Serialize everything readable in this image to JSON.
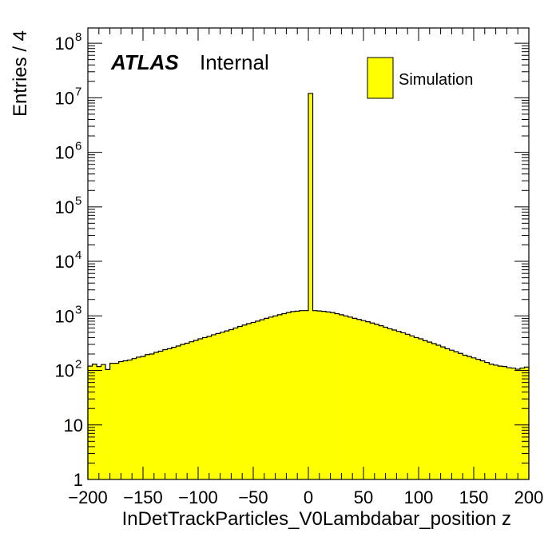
{
  "chart_data": {
    "type": "bar",
    "subtype": "histogram",
    "xlabel": "InDetTrackParticles_V0Lambdabar_position z",
    "ylabel": "Entries / 4",
    "xlim": [
      -200,
      200
    ],
    "ylim": [
      1,
      200000000
    ],
    "yscale": "log",
    "bin_width": 4,
    "x_ticks": [
      "−200",
      "−150",
      "−100",
      "−50",
      "0",
      "50",
      "100",
      "150",
      "200"
    ],
    "x_tick_values": [
      -200,
      -150,
      -100,
      -50,
      0,
      50,
      100,
      150,
      200
    ],
    "y_ticks": [
      {
        "value": 1,
        "base": "1",
        "exp": ""
      },
      {
        "value": 10,
        "base": "10",
        "exp": ""
      },
      {
        "value": 100,
        "base": "10",
        "exp": "2"
      },
      {
        "value": 1000,
        "base": "10",
        "exp": "3"
      },
      {
        "value": 10000,
        "base": "10",
        "exp": "4"
      },
      {
        "value": 100000,
        "base": "10",
        "exp": "5"
      },
      {
        "value": 1000000,
        "base": "10",
        "exp": "6"
      },
      {
        "value": 10000000,
        "base": "10",
        "exp": "7"
      },
      {
        "value": 100000000,
        "base": "10",
        "exp": "8"
      }
    ],
    "labels": {
      "experiment": "ATLAS",
      "status": "Internal"
    },
    "legend": {
      "placement": "top-right",
      "entries": [
        "Simulation"
      ]
    },
    "colors": {
      "fill": "#ffff00",
      "line": "#000000"
    },
    "series": [
      {
        "name": "Simulation",
        "bin_low_edges": [
          -200,
          -196,
          -192,
          -188,
          -184,
          -180,
          -176,
          -172,
          -168,
          -164,
          -160,
          -156,
          -152,
          -148,
          -144,
          -140,
          -136,
          -132,
          -128,
          -124,
          -120,
          -116,
          -112,
          -108,
          -104,
          -100,
          -96,
          -92,
          -88,
          -84,
          -80,
          -76,
          -72,
          -68,
          -64,
          -60,
          -56,
          -52,
          -48,
          -44,
          -40,
          -36,
          -32,
          -28,
          -24,
          -20,
          -16,
          -12,
          -8,
          -4,
          0,
          4,
          8,
          12,
          16,
          20,
          24,
          28,
          32,
          36,
          40,
          44,
          48,
          52,
          56,
          60,
          64,
          68,
          72,
          76,
          80,
          84,
          88,
          92,
          96,
          100,
          104,
          108,
          112,
          116,
          120,
          124,
          128,
          132,
          136,
          140,
          144,
          148,
          152,
          156,
          160,
          164,
          168,
          172,
          176,
          180,
          184,
          188,
          192,
          196
        ],
        "values": [
          120,
          130,
          118,
          128,
          104,
          135,
          135,
          145,
          150,
          155,
          165,
          175,
          180,
          195,
          200,
          215,
          225,
          240,
          250,
          265,
          280,
          300,
          315,
          335,
          355,
          380,
          400,
          420,
          450,
          475,
          500,
          530,
          560,
          600,
          640,
          680,
          720,
          760,
          800,
          850,
          900,
          950,
          1000,
          1050,
          1100,
          1150,
          1200,
          1220,
          1250,
          1250,
          12000000,
          1250,
          1230,
          1210,
          1180,
          1150,
          1100,
          1050,
          1000,
          950,
          900,
          860,
          820,
          780,
          740,
          700,
          660,
          620,
          580,
          550,
          520,
          490,
          460,
          430,
          400,
          380,
          350,
          330,
          310,
          290,
          270,
          250,
          235,
          220,
          205,
          190,
          180,
          170,
          160,
          150,
          140,
          130,
          125,
          120,
          118,
          112,
          110,
          105,
          110,
          115
        ]
      }
    ]
  }
}
